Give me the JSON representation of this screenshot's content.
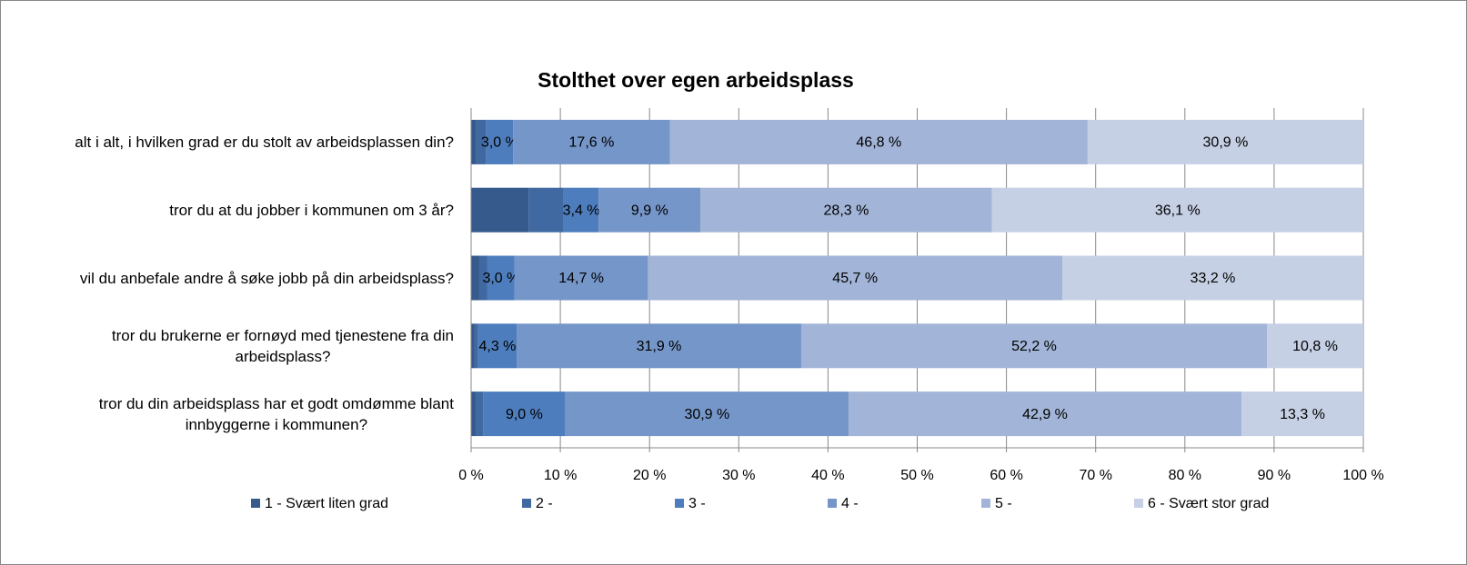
{
  "chart_data": {
    "type": "bar",
    "orientation": "horizontal",
    "stacking": "percent",
    "title": "Stolthet over egen arbeidsplass",
    "categories": [
      "alt i alt, i hvilken grad er du stolt av arbeidsplassen din?",
      "tror du at du jobber i kommunen om 3 år?",
      "vil du anbefale andre å søke jobb på din arbeidsplass?",
      "tror du brukerne er fornøyd med tjenestene fra din\narbeidsplass?",
      "tror du din arbeidsplass har et godt omdømme blant\ninnbyggerne i kommunen?"
    ],
    "series": [
      {
        "name": "1 - Svært liten grad",
        "color": "#375a8c",
        "values": [
          0.6,
          5.6,
          0.9,
          0.4,
          0.5
        ],
        "value_labels": [
          null,
          null,
          null,
          null,
          null
        ]
      },
      {
        "name": "2 -",
        "color": "#4069a2",
        "values": [
          1.1,
          3.4,
          0.9,
          0.4,
          0.8
        ],
        "value_labels": [
          null,
          null,
          null,
          null,
          null
        ]
      },
      {
        "name": "3 -",
        "color": "#4e7dbd",
        "values": [
          3.0,
          3.4,
          3.0,
          4.3,
          9.0
        ],
        "value_labels": [
          "3,0 %",
          "3,4 %",
          "3,0 %",
          "4,3 %",
          "9,0 %"
        ]
      },
      {
        "name": "4 -",
        "color": "#7596c9",
        "values": [
          17.6,
          9.9,
          14.7,
          31.9,
          30.9
        ],
        "value_labels": [
          "17,6 %",
          "9,9 %",
          "14,7 %",
          "31,9 %",
          "30,9 %"
        ]
      },
      {
        "name": "5 -",
        "color": "#a2b4d7",
        "values": [
          46.8,
          28.3,
          45.7,
          52.2,
          42.9
        ],
        "value_labels": [
          "46,8 %",
          "28,3 %",
          "45,7 %",
          "52,2 %",
          "42,9 %"
        ]
      },
      {
        "name": "6 - Svært stor grad",
        "color": "#c6d0e5",
        "values": [
          30.9,
          36.1,
          33.2,
          10.8,
          13.3
        ],
        "value_labels": [
          "30,9 %",
          "36,1 %",
          "33,2 %",
          "10,8 %",
          "13,3 %"
        ]
      }
    ],
    "xlim": [
      0,
      100
    ],
    "xticks": [
      {
        "value": 0,
        "label": "0 %"
      },
      {
        "value": 10,
        "label": "10 %"
      },
      {
        "value": 20,
        "label": "20 %"
      },
      {
        "value": 30,
        "label": "30 %"
      },
      {
        "value": 40,
        "label": "40 %"
      },
      {
        "value": 50,
        "label": "50 %"
      },
      {
        "value": 60,
        "label": "60 %"
      },
      {
        "value": 70,
        "label": "70 %"
      },
      {
        "value": 80,
        "label": "80 %"
      },
      {
        "value": 90,
        "label": "90 %"
      },
      {
        "value": 100,
        "label": "100 %"
      }
    ],
    "grid": true,
    "legend": "bottom"
  }
}
